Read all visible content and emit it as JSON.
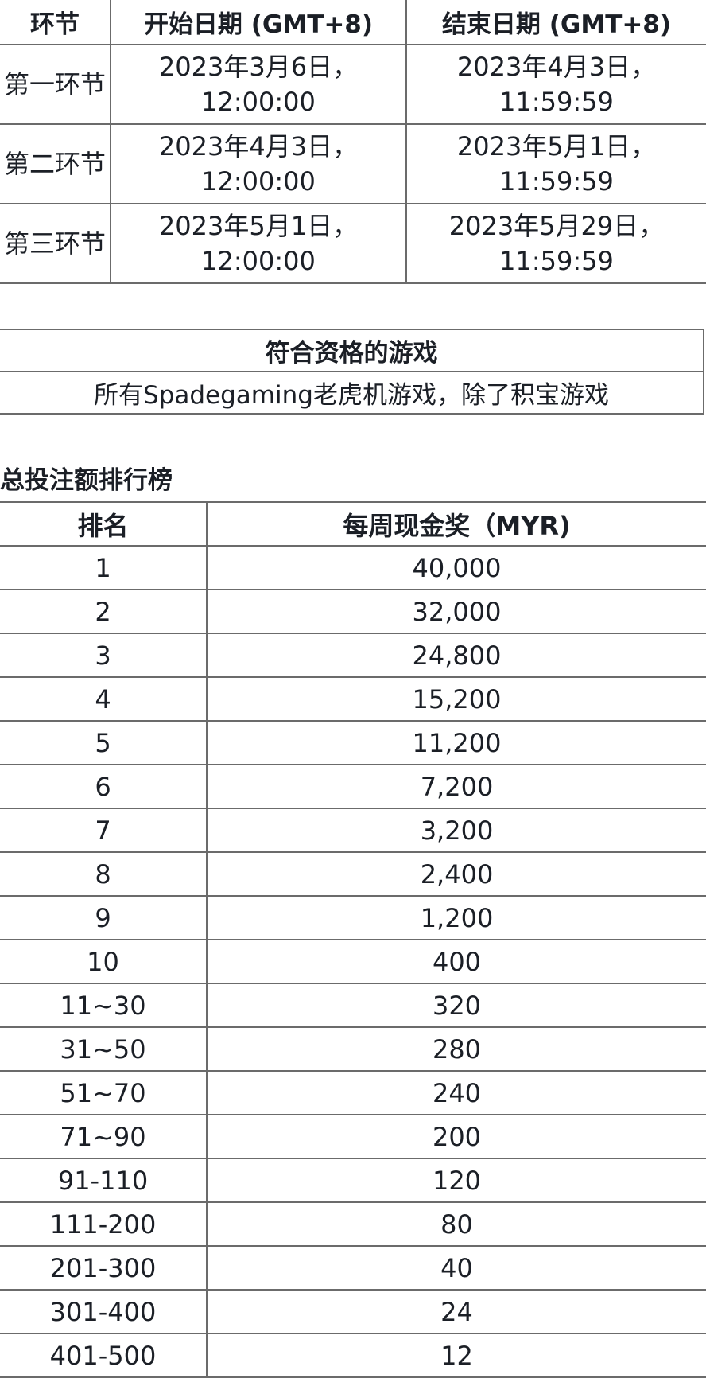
{
  "schedule": {
    "headers": [
      "环节",
      "开始日期 (GMT+8)",
      "结束日期 (GMT+8)"
    ],
    "rows": [
      {
        "stage": "第一环节",
        "start": "2023年3月6日，12:00:00",
        "end": "2023年4月3日，11:59:59"
      },
      {
        "stage": "第二环节",
        "start": "2023年4月3日，12:00:00",
        "end": "2023年5月1日，11:59:59"
      },
      {
        "stage": "第三环节",
        "start": "2023年5月1日，12:00:00",
        "end": "2023年5月29日，11:59:59"
      }
    ]
  },
  "eligible_games": {
    "header": "符合资格的游戏",
    "value": "所有Spadegaming老虎机游戏，除了积宝游戏"
  },
  "leaderboard": {
    "title": "总投注额排行榜",
    "headers": [
      "排名",
      "每周现金奖（MYR)"
    ],
    "rows": [
      [
        "1",
        "40,000"
      ],
      [
        "2",
        "32,000"
      ],
      [
        "3",
        "24,800"
      ],
      [
        "4",
        "15,200"
      ],
      [
        "5",
        "11,200"
      ],
      [
        "6",
        "7,200"
      ],
      [
        "7",
        "3,200"
      ],
      [
        "8",
        "2,400"
      ],
      [
        "9",
        "1,200"
      ],
      [
        "10",
        "400"
      ],
      [
        "11~30",
        "320"
      ],
      [
        "31~50",
        "280"
      ],
      [
        "51~70",
        "240"
      ],
      [
        "71~90",
        "200"
      ],
      [
        "91-110",
        "120"
      ],
      [
        "111-200",
        "80"
      ],
      [
        "201-300",
        "40"
      ],
      [
        "301-400",
        "24"
      ],
      [
        "401-500",
        "12"
      ]
    ]
  }
}
